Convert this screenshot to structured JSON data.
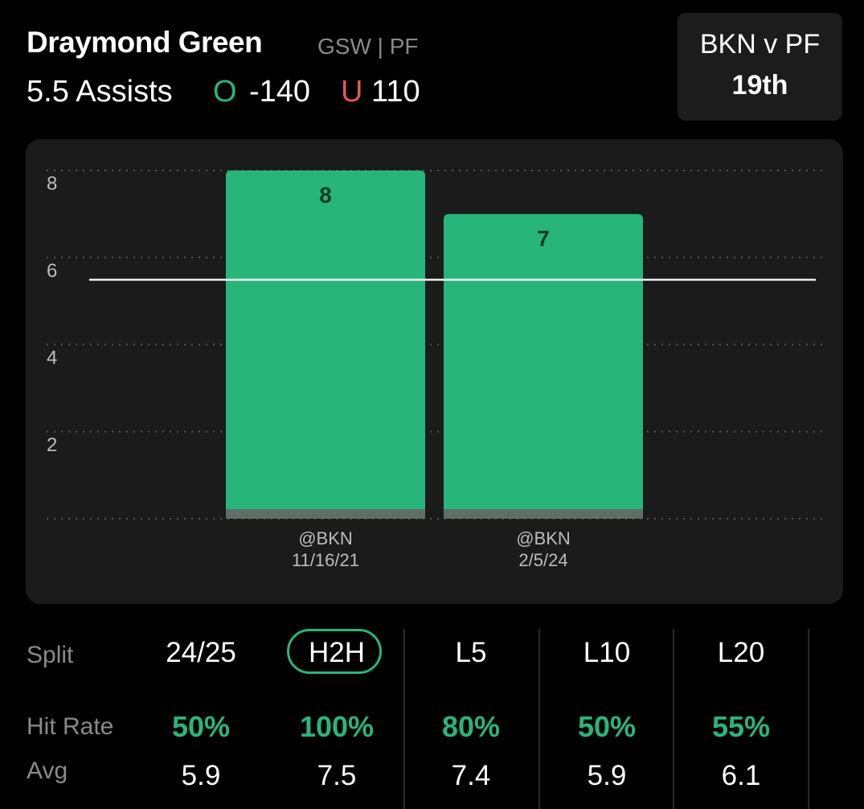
{
  "header": {
    "player_name": "Draymond Green",
    "team_position": "GSW | PF",
    "prop": "5.5 Assists",
    "over_label": "O",
    "over_odds": "-140",
    "under_label": "U",
    "under_odds": "110"
  },
  "matchup": {
    "title": "BKN v PF",
    "rank": "19th"
  },
  "chart_data": {
    "type": "bar",
    "categories": [
      "@BKN 11/16/21",
      "@BKN 2/5/24"
    ],
    "opponents": [
      "@BKN",
      "@BKN"
    ],
    "dates": [
      "11/16/21",
      "2/5/24"
    ],
    "values": [
      8,
      7
    ],
    "value_labels": [
      "8",
      "7"
    ],
    "ylim": [
      0,
      8
    ],
    "yticks": [
      2,
      4,
      6,
      8
    ],
    "ytick_labels": [
      "2",
      "4",
      "6",
      "8"
    ],
    "line_value": 5.5,
    "grid": true,
    "bar_color": "#27b57a"
  },
  "stats": {
    "row_labels": {
      "split": "Split",
      "hit_rate": "Hit Rate",
      "avg": "Avg"
    },
    "selected": "H2H",
    "columns": [
      {
        "split": "24/25",
        "hit_rate": "50%",
        "avg": "5.9"
      },
      {
        "split": "H2H",
        "hit_rate": "100%",
        "avg": "7.5"
      },
      {
        "split": "L5",
        "hit_rate": "80%",
        "avg": "7.4"
      },
      {
        "split": "L10",
        "hit_rate": "50%",
        "avg": "5.9"
      },
      {
        "split": "L20",
        "hit_rate": "55%",
        "avg": "6.1"
      }
    ]
  },
  "colors": {
    "accent_green": "#2ab57a",
    "under_red": "#e8555a",
    "muted_text": "#8a8a8a",
    "card_bg": "#1b1b1b"
  }
}
